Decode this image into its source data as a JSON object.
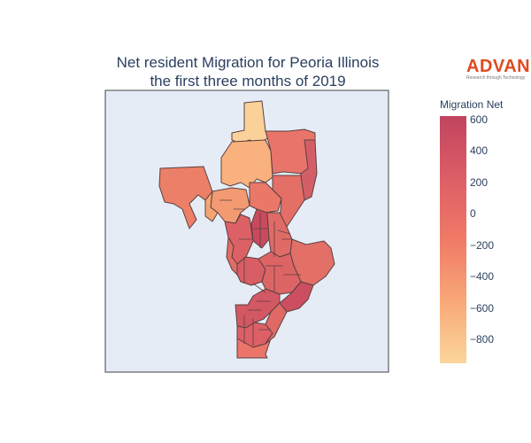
{
  "title_line1": "Net resident Migration for Peoria Illinois",
  "title_line2": "the first three months of 2019",
  "logo": {
    "name": "ADVAN",
    "tagline": "Research through Technology"
  },
  "colorbar": {
    "title": "Migration Net",
    "range": [
      -950,
      640
    ],
    "ticks": [
      "600",
      "400",
      "200",
      "0",
      "−200",
      "−400",
      "−600",
      "−800"
    ],
    "tick_values": [
      600,
      400,
      200,
      0,
      -200,
      -400,
      -600,
      -800
    ],
    "colors": [
      "#fbd69b",
      "#f8a877",
      "#f07a66",
      "#dc5e66",
      "#c1445f"
    ]
  },
  "map_background": "#e5ecf6",
  "border_color": "#444444"
}
